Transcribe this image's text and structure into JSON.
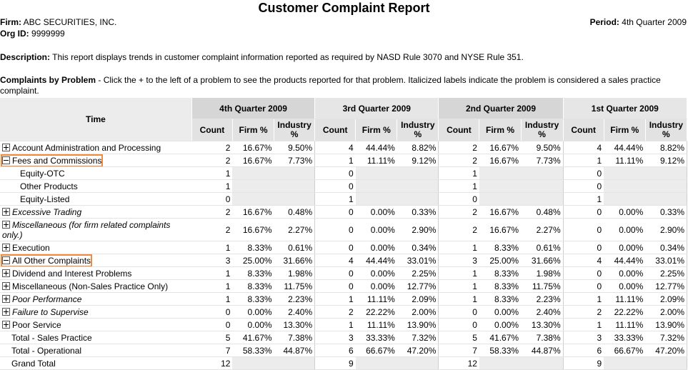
{
  "header": {
    "title": "Customer Complaint Report",
    "firm_label": "Firm:",
    "firm": "ABC SECURITIES, INC.",
    "org_label": "Org ID:",
    "org": "9999999",
    "period_label": "Period:",
    "period": "4th Quarter 2009",
    "description_label": "Description:",
    "description": "This report displays trends in customer complaint information reported as required by NASD Rule 3070 and NYSE Rule 351.",
    "complaints_label": "Complaints by Problem",
    "complaints_text": " - Click the + to the left of a problem to see the products reported for that problem. Italicized labels indicate the problem is considered a sales practice complaint."
  },
  "table": {
    "time_header": "Time",
    "quarters": [
      "4th Quarter 2009",
      "3rd Quarter 2009",
      "2nd Quarter 2009",
      "1st Quarter 2009"
    ],
    "subheaders": [
      "Count",
      "Firm %",
      "Industry %"
    ],
    "rows": [
      {
        "label": "Account Administration and Processing",
        "kind": "problem",
        "expanded": false,
        "cells": [
          "2",
          "16.67%",
          "9.50%",
          "4",
          "44.44%",
          "8.82%",
          "2",
          "16.67%",
          "9.50%",
          "4",
          "44.44%",
          "8.82%"
        ]
      },
      {
        "label": "Fees and Commissions",
        "kind": "problem",
        "expanded": true,
        "highlighted": true,
        "cells": [
          "2",
          "16.67%",
          "7.73%",
          "1",
          "11.11%",
          "9.12%",
          "2",
          "16.67%",
          "7.73%",
          "1",
          "11.11%",
          "9.12%"
        ]
      },
      {
        "label": "Equity-OTC",
        "kind": "product",
        "counts": [
          1,
          0,
          1,
          0
        ]
      },
      {
        "label": "Other Products",
        "kind": "product",
        "counts": [
          1,
          0,
          1,
          0
        ]
      },
      {
        "label": "Equity-Listed",
        "kind": "product",
        "counts": [
          0,
          1,
          0,
          1
        ]
      },
      {
        "label": "Excessive Trading",
        "kind": "problem",
        "expanded": false,
        "italic": true,
        "cells": [
          "2",
          "16.67%",
          "0.48%",
          "0",
          "0.00%",
          "0.33%",
          "2",
          "16.67%",
          "0.48%",
          "0",
          "0.00%",
          "0.33%"
        ]
      },
      {
        "label": "Miscellaneous (for firm related complaints only.)",
        "kind": "problem",
        "expanded": false,
        "italic": true,
        "cells": [
          "2",
          "16.67%",
          "2.27%",
          "0",
          "0.00%",
          "2.90%",
          "2",
          "16.67%",
          "2.27%",
          "0",
          "0.00%",
          "2.90%"
        ]
      },
      {
        "label": "Execution",
        "kind": "problem",
        "expanded": false,
        "cells": [
          "1",
          "8.33%",
          "0.61%",
          "0",
          "0.00%",
          "0.34%",
          "1",
          "8.33%",
          "0.61%",
          "0",
          "0.00%",
          "0.34%"
        ]
      },
      {
        "label": "All Other Complaints",
        "kind": "problem",
        "expanded": true,
        "highlighted": true,
        "cells": [
          "3",
          "25.00%",
          "31.66%",
          "4",
          "44.44%",
          "33.01%",
          "3",
          "25.00%",
          "31.66%",
          "4",
          "44.44%",
          "33.01%"
        ]
      },
      {
        "label": "Dividend and Interest Problems",
        "kind": "problem",
        "expanded": false,
        "cells": [
          "1",
          "8.33%",
          "1.98%",
          "0",
          "0.00%",
          "2.25%",
          "1",
          "8.33%",
          "1.98%",
          "0",
          "0.00%",
          "2.25%"
        ]
      },
      {
        "label": "Miscellaneous (Non-Sales Practice Only)",
        "kind": "problem",
        "expanded": false,
        "cells": [
          "1",
          "8.33%",
          "11.75%",
          "0",
          "0.00%",
          "12.77%",
          "1",
          "8.33%",
          "11.75%",
          "0",
          "0.00%",
          "12.77%"
        ]
      },
      {
        "label": "Poor Performance",
        "kind": "problem",
        "expanded": false,
        "italic": true,
        "cells": [
          "1",
          "8.33%",
          "2.23%",
          "1",
          "11.11%",
          "2.09%",
          "1",
          "8.33%",
          "2.23%",
          "1",
          "11.11%",
          "2.09%"
        ]
      },
      {
        "label": "Failure to Supervise",
        "kind": "problem",
        "expanded": false,
        "italic": true,
        "cells": [
          "0",
          "0.00%",
          "2.40%",
          "2",
          "22.22%",
          "2.00%",
          "0",
          "0.00%",
          "2.40%",
          "2",
          "22.22%",
          "2.00%"
        ]
      },
      {
        "label": "Poor Service",
        "kind": "problem",
        "expanded": false,
        "cells": [
          "0",
          "0.00%",
          "13.30%",
          "1",
          "11.11%",
          "13.90%",
          "0",
          "0.00%",
          "13.30%",
          "1",
          "11.11%",
          "13.90%"
        ]
      },
      {
        "label": "Total - Sales Practice",
        "kind": "total",
        "cells": [
          "5",
          "41.67%",
          "7.38%",
          "3",
          "33.33%",
          "7.32%",
          "5",
          "41.67%",
          "7.38%",
          "3",
          "33.33%",
          "7.32%"
        ]
      },
      {
        "label": "Total - Operational",
        "kind": "total",
        "cells": [
          "7",
          "58.33%",
          "44.87%",
          "6",
          "66.67%",
          "47.20%",
          "7",
          "58.33%",
          "44.87%",
          "6",
          "66.67%",
          "47.20%"
        ]
      },
      {
        "label": "Grand Total",
        "kind": "total",
        "counts": [
          12,
          9,
          12,
          9
        ]
      }
    ]
  }
}
